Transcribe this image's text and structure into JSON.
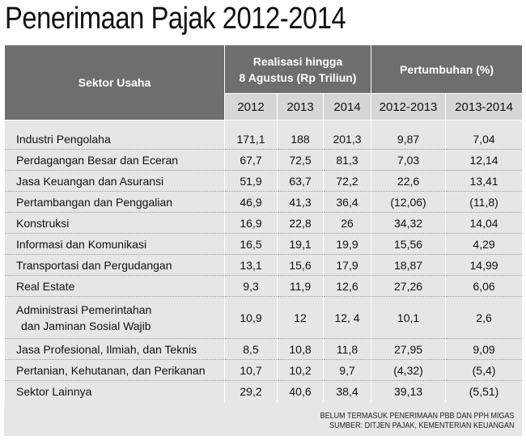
{
  "title": "Penerimaan Pajak 2012-2014",
  "header": {
    "sector": "Sektor Usaha",
    "realization_line1": "Realisasi hingga",
    "realization_line2": "8 Agustus (Rp Triliun)",
    "growth": "Pertumbuhan (%)",
    "years": [
      "2012",
      "2013",
      "2014"
    ],
    "growth_periods": [
      "2012-2013",
      "2013-2014"
    ]
  },
  "rows": [
    {
      "sector": "Industri Pengolaha",
      "v2012": "171,1",
      "v2013": "188",
      "v2014": "201,3",
      "g1": "9,87",
      "g2": "7,04"
    },
    {
      "sector": "Perdagangan Besar dan Eceran",
      "v2012": "67,7",
      "v2013": "72,5",
      "v2014": "81,3",
      "g1": "7,03",
      "g2": "12,14"
    },
    {
      "sector": "Jasa Keuangan dan Asuransi",
      "v2012": "51,9",
      "v2013": "63,7",
      "v2014": "72,2",
      "g1": "22,6",
      "g2": "13,41"
    },
    {
      "sector": "Pertambangan dan Penggalian",
      "v2012": "46,9",
      "v2013": "41,3",
      "v2014": "36,4",
      "g1": "(12,06)",
      "g2": "(11,8)"
    },
    {
      "sector": "Konstruksi",
      "v2012": "16,9",
      "v2013": "22,8",
      "v2014": "26",
      "g1": "34,32",
      "g2": "14,04"
    },
    {
      "sector": "Informasi dan Komunikasi",
      "v2012": "16,5",
      "v2013": "19,1",
      "v2014": "19,9",
      "g1": "15,56",
      "g2": "4,29"
    },
    {
      "sector": "Transportasi dan Pergudangan",
      "v2012": "13,1",
      "v2013": "15,6",
      "v2014": "17,9",
      "g1": "18,87",
      "g2": "14,99"
    },
    {
      "sector": "Real Estate",
      "v2012": "9,3",
      "v2013": "11,9",
      "v2014": "12,6",
      "g1": "27,26",
      "g2": "6,06"
    },
    {
      "sector_line1": "Administrasi Pemerintahan",
      "sector_line2": "dan Jaminan Sosial Wajib",
      "v2012": "10,9",
      "v2013": "12",
      "v2014": "12, 4",
      "g1": "10,1",
      "g2": "2,6"
    },
    {
      "sector": "Jasa Profesional, Ilmiah, dan Teknis",
      "v2012": "8,5",
      "v2013": "10,8",
      "v2014": "11,8",
      "g1": "27,95",
      "g2": "9,09"
    },
    {
      "sector": "Pertanian, Kehutanan, dan Perikanan",
      "v2012": "10,7",
      "v2013": "10,2",
      "v2014": "9,7",
      "g1": "(4,32)",
      "g2": "(5,4)"
    },
    {
      "sector": "Sektor Lainnya",
      "v2012": "29,2",
      "v2013": "40,6",
      "v2014": "38,4",
      "g1": "39,13",
      "g2": "(5,51)"
    }
  ],
  "notes": {
    "line1": "BELUM TERMASUK PENERIMAAN PBB DAN PPH MIGAS",
    "line2": "SUMBER: DITJEN PAJAK, KEMENTERIAN KEUANGAN"
  }
}
